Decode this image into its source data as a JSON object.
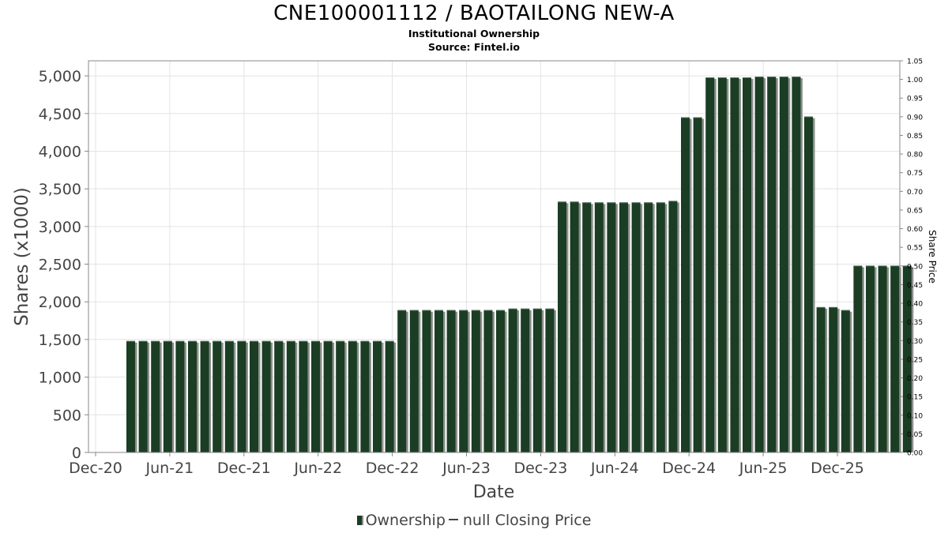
{
  "chart_data": {
    "type": "bar",
    "title": "CNE100001112 / BAOTAILONG NEW-A",
    "subtitle": [
      "Institutional Ownership",
      "Source: Fintel.io"
    ],
    "xlabel": "Date",
    "ylabel": "Shares (x1000)",
    "y2label": "Share Price",
    "ylim": [
      0,
      5200
    ],
    "y2lim": [
      0,
      1.05
    ],
    "y_ticks": [
      "0",
      "500",
      "1,000",
      "1,500",
      "2,000",
      "2,500",
      "3,000",
      "3,500",
      "4,000",
      "4,500",
      "5,000"
    ],
    "y_tick_values": [
      0,
      500,
      1000,
      1500,
      2000,
      2500,
      3000,
      3500,
      4000,
      4500,
      5000
    ],
    "y2_ticks": [
      "0.00",
      "0.05",
      "0.10",
      "0.15",
      "0.20",
      "0.25",
      "0.30",
      "0.35",
      "0.40",
      "0.45",
      "0.50",
      "0.55",
      "0.60",
      "0.65",
      "0.70",
      "0.75",
      "0.80",
      "0.85",
      "0.90",
      "0.95",
      "1.00",
      "1.05"
    ],
    "x_ticks": [
      "Dec-20",
      "Jun-21",
      "Dec-21",
      "Jun-22",
      "Dec-22",
      "Jun-23",
      "Dec-23",
      "Jun-24",
      "Dec-24",
      "Jun-25",
      "Dec-25"
    ],
    "grid": true,
    "legend_position": "bottom",
    "series": [
      {
        "name": "Ownership",
        "color": "#1a3d24",
        "values": [
          1480,
          1480,
          1480,
          1480,
          1480,
          1480,
          1480,
          1480,
          1480,
          1480,
          1480,
          1480,
          1480,
          1480,
          1480,
          1480,
          1480,
          1480,
          1480,
          1480,
          1480,
          1480,
          1890,
          1890,
          1890,
          1890,
          1890,
          1890,
          1890,
          1890,
          1890,
          1910,
          1910,
          1910,
          1910,
          3330,
          3330,
          3320,
          3320,
          3320,
          3320,
          3320,
          3320,
          3320,
          3340,
          4450,
          4450,
          4980,
          4980,
          4980,
          4980,
          4990,
          4990,
          4990,
          4990,
          4460,
          1930,
          1930,
          1890,
          2480,
          2480,
          2480,
          2480,
          2480
        ]
      }
    ]
  },
  "legend": {
    "ownership_label": "Ownership",
    "price_label": "null Closing Price"
  }
}
